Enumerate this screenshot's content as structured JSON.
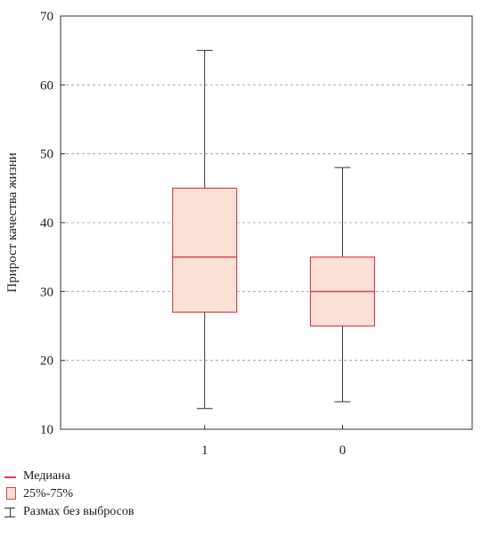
{
  "chart_data": {
    "type": "boxplot",
    "categories": [
      "1",
      "0"
    ],
    "boxes": [
      {
        "category": "1",
        "min": 13,
        "q1": 27,
        "median": 35,
        "q3": 45,
        "max": 65
      },
      {
        "category": "0",
        "min": 14,
        "q1": 25,
        "median": 30,
        "q3": 35,
        "max": 48
      }
    ],
    "ylabel": "Прирост качества жизни",
    "xlabel": "",
    "ylim": [
      10,
      70
    ],
    "yticks": [
      "10",
      "20",
      "30",
      "40",
      "50",
      "60",
      "70"
    ],
    "grid": "horizontal dashed",
    "legend": {
      "placement": "bottom-left",
      "median_label": "Медиана",
      "box_label": "25%-75%",
      "range_label": "Размах без выбросов"
    },
    "colors": {
      "box_fill": "#fbe1d6",
      "box_edge": "#d9434b",
      "median": "#d9434b",
      "whisker": "#333333",
      "grid": "#9a9a9a"
    }
  }
}
